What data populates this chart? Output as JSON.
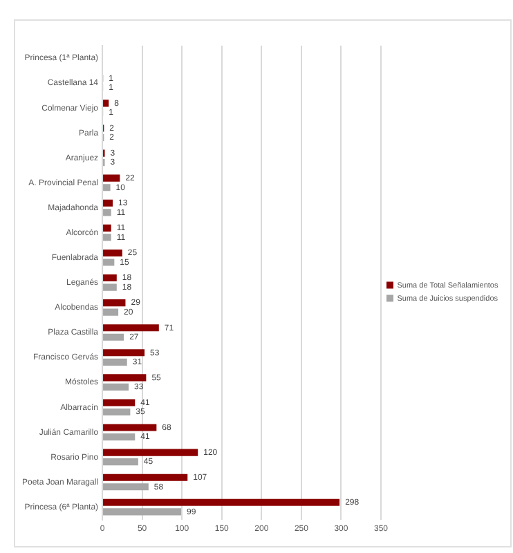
{
  "chart_data": {
    "type": "bar",
    "orientation": "horizontal",
    "categories": [
      "Princesa (1ª Planta)",
      "Castellana 14",
      "Colmenar Viejo",
      "Parla",
      "Aranjuez",
      "A. Provincial Penal",
      "Majadahonda",
      "Alcorcón",
      "Fuenlabrada",
      "Leganés",
      "Alcobendas",
      "Plaza Castilla",
      "Francisco Gervás",
      "Móstoles",
      "Albarracín",
      "Julián Camarillo",
      "Rosario Pino",
      "Poeta Joan Maragall",
      "Princesa (6ª Planta)"
    ],
    "series": [
      {
        "name": "Suma de Total Señalamientos",
        "color": "#8b0000",
        "values": [
          null,
          1,
          8,
          2,
          3,
          22,
          13,
          11,
          25,
          18,
          29,
          71,
          53,
          55,
          41,
          68,
          120,
          107,
          298
        ]
      },
      {
        "name": "Suma de Juicios suspendidos",
        "color": "#a6a6a6",
        "values": [
          null,
          1,
          1,
          2,
          3,
          10,
          11,
          11,
          15,
          18,
          20,
          27,
          31,
          33,
          35,
          41,
          45,
          58,
          99
        ]
      }
    ],
    "xlim": [
      0,
      350
    ],
    "xticks": [
      0,
      50,
      100,
      150,
      200,
      250,
      300,
      350
    ],
    "grid": "x",
    "legend": "right",
    "data_labels": true
  }
}
